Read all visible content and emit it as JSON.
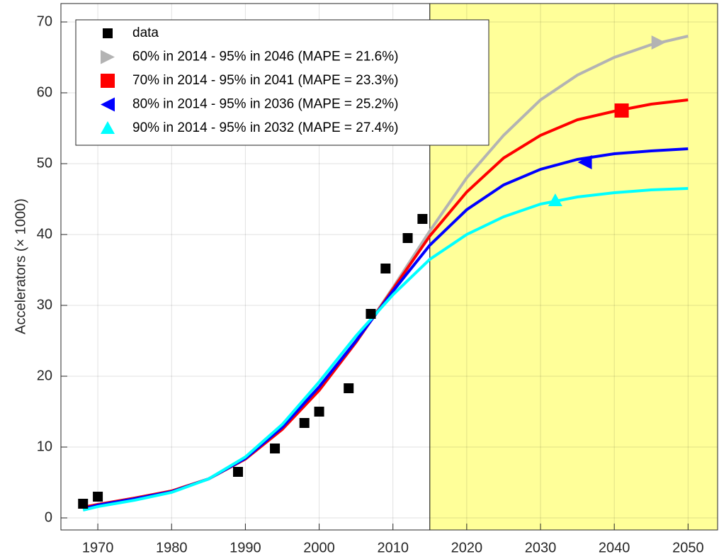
{
  "chart_data": {
    "type": "line",
    "ylabel": "Accelerators (× 1000)",
    "xlim": [
      1965,
      2054
    ],
    "ylim": [
      -1.7,
      72.6
    ],
    "xticks": [
      1970,
      1980,
      1990,
      2000,
      2010,
      2020,
      2030,
      2040,
      2050
    ],
    "yticks": [
      0,
      10,
      20,
      30,
      40,
      50,
      60,
      70
    ],
    "grid": true,
    "shade_from": 2015,
    "shade_color": "#ffff99",
    "legend": "upper left",
    "x": [
      1968,
      1970,
      1975,
      1980,
      1985,
      1990,
      1995,
      2000,
      2005,
      2010,
      2015,
      2020,
      2025,
      2030,
      2035,
      2040,
      2045,
      2050
    ],
    "series": [
      {
        "name": "data",
        "color": "#000000",
        "marker": "square",
        "x": [
          1968,
          1970,
          1989,
          1994,
          1998,
          2000,
          2004,
          2007,
          2009,
          2012,
          2014
        ],
        "values": [
          2.0,
          3.0,
          6.5,
          9.8,
          13.4,
          15.0,
          18.3,
          28.8,
          35.2,
          39.5,
          42.2
        ]
      },
      {
        "name": "60% in 2014 - 95% in 2046 (MAPE = 21.6%)",
        "color": "#b3b3b3",
        "marker": "triangle-right",
        "values": [
          1.5,
          1.9,
          2.8,
          3.8,
          5.5,
          8.3,
          12.5,
          18.0,
          24.8,
          32.5,
          40.5,
          48.0,
          54.0,
          59.0,
          62.5,
          65.0,
          66.8,
          68.0
        ],
        "marker_x": 2046,
        "marker_y": 67.1
      },
      {
        "name": "70% in 2014 - 95% in 2041 (MAPE = 23.3%)",
        "color": "#ff0000",
        "marker": "square",
        "values": [
          1.5,
          1.9,
          2.8,
          3.8,
          5.5,
          8.3,
          12.5,
          18.0,
          24.8,
          32.3,
          39.8,
          46.0,
          50.8,
          54.0,
          56.2,
          57.4,
          58.4,
          59.0
        ],
        "marker_x": 2041,
        "marker_y": 57.5
      },
      {
        "name": "80% in 2014 - 95% in 2036 (MAPE = 25.2%)",
        "color": "#0000ff",
        "marker": "triangle-left",
        "values": [
          1.3,
          1.8,
          2.7,
          3.7,
          5.5,
          8.4,
          12.8,
          18.5,
          25.0,
          32.0,
          38.5,
          43.5,
          47.0,
          49.2,
          50.6,
          51.4,
          51.8,
          52.1
        ],
        "marker_x": 2036,
        "marker_y": 50.2
      },
      {
        "name": "90% in 2014 - 95% in 2032 (MAPE = 27.4%)",
        "color": "#00ffff",
        "marker": "triangle-up",
        "values": [
          1.1,
          1.6,
          2.5,
          3.6,
          5.5,
          8.6,
          13.2,
          19.2,
          25.7,
          31.5,
          36.5,
          40.0,
          42.5,
          44.3,
          45.3,
          45.9,
          46.3,
          46.5
        ],
        "marker_x": 2032,
        "marker_y": 44.8
      }
    ]
  }
}
